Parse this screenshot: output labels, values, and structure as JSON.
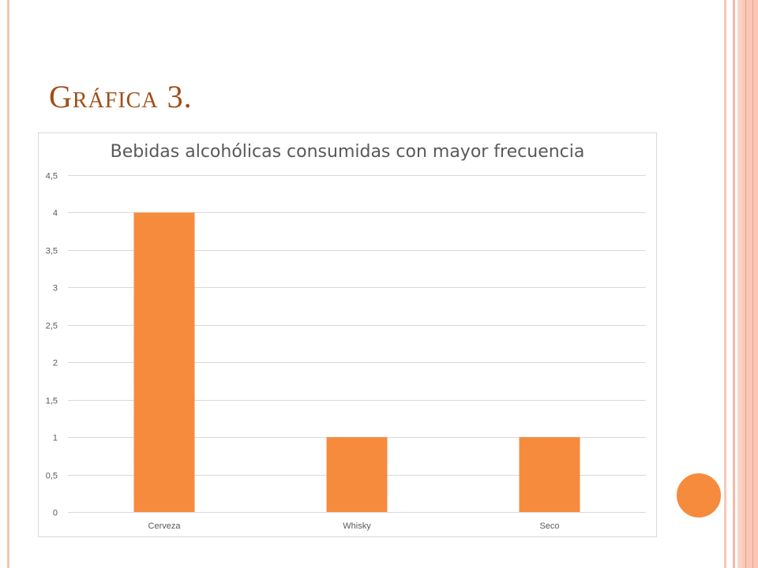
{
  "slide": {
    "title": "Gráfica 3."
  },
  "theme": {
    "title_color": "#A04D17",
    "accent_color": "#F68B3E",
    "text_color": "#595959",
    "gridline_color": "#D9D9D9"
  },
  "chart_data": {
    "type": "bar",
    "title": "Bebidas alcohólicas consumidas con mayor frecuencia",
    "categories": [
      "Cerveza",
      "Whisky",
      "Seco"
    ],
    "values": [
      4,
      1,
      1
    ],
    "ylim": [
      0,
      4.5
    ],
    "y_ticks": [
      {
        "value": 0,
        "label": "0"
      },
      {
        "value": 0.5,
        "label": "0,5"
      },
      {
        "value": 1,
        "label": "1"
      },
      {
        "value": 1.5,
        "label": "1,5"
      },
      {
        "value": 2,
        "label": "2"
      },
      {
        "value": 2.5,
        "label": "2,5"
      },
      {
        "value": 3,
        "label": "3"
      },
      {
        "value": 3.5,
        "label": "3,5"
      },
      {
        "value": 4,
        "label": "4"
      },
      {
        "value": 4.5,
        "label": "4,5"
      }
    ],
    "gridlines": true,
    "bar_color": "#F68B3E"
  }
}
